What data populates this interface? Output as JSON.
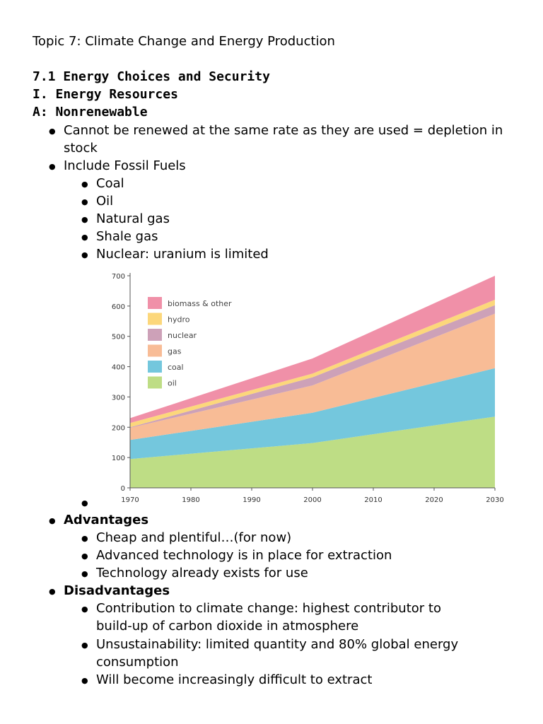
{
  "doc": {
    "topic_title": "Topic 7: Climate Change and Energy Production",
    "section_heading": "7.1 Energy Choices and Security",
    "subsection_heading": "I. Energy Resources",
    "category_heading": "A: Nonrenewable",
    "bullets": {
      "depletion_line1": "Cannot be renewed at the same rate as they are used = depletion in",
      "depletion_line2": "stock",
      "fossil": "Include Fossil Fuels",
      "fossil_items": [
        "Coal",
        "Oil",
        "Natural gas",
        "Shale gas",
        "Nuclear: uranium is limited"
      ]
    },
    "advantages": {
      "label": "Advantages",
      "items": [
        "Cheap and plentiful…(for now)",
        "Advanced technology is in place for extraction",
        "Technology already exists for use"
      ]
    },
    "disadvantages": {
      "label": "Disadvantages",
      "items": [
        {
          "line1": "Contribution to climate change: highest contributor to",
          "line2": "build-up of carbon dioxide in atmosphere"
        },
        {
          "line1": "Unsustainability: limited quantity and 80% global energy",
          "line2": "consumption"
        },
        {
          "line1": "Will become increasingly difficult to extract",
          "line2": ""
        }
      ]
    },
    "bullet_char": "●"
  },
  "chart_data": {
    "type": "area",
    "stacked": true,
    "x": [
      1970,
      2000,
      2030
    ],
    "xticks": [
      1970,
      1980,
      1990,
      2000,
      2010,
      2020,
      2030
    ],
    "yticks": [
      0,
      100,
      200,
      300,
      400,
      500,
      600,
      700
    ],
    "ylim": [
      0,
      700
    ],
    "xlim": [
      1970,
      2030
    ],
    "ylabel": "",
    "legend_position": "top-left",
    "series": [
      {
        "name": "oil",
        "color": "#bedd85",
        "values": [
          95,
          148,
          235
        ]
      },
      {
        "name": "coal",
        "color": "#74c7dd",
        "values": [
          63,
          100,
          160
        ]
      },
      {
        "name": "gas",
        "color": "#f8bc96",
        "values": [
          40,
          90,
          180
        ]
      },
      {
        "name": "nuclear",
        "color": "#cda1b8",
        "values": [
          2,
          27,
          28
        ]
      },
      {
        "name": "hydro",
        "color": "#fcd77b",
        "values": [
          14,
          12,
          18
        ]
      },
      {
        "name": "biomass & other",
        "color": "#f090a8",
        "values": [
          16,
          50,
          79
        ]
      }
    ],
    "legend_order": [
      "biomass & other",
      "hydro",
      "nuclear",
      "gas",
      "coal",
      "oil"
    ]
  }
}
